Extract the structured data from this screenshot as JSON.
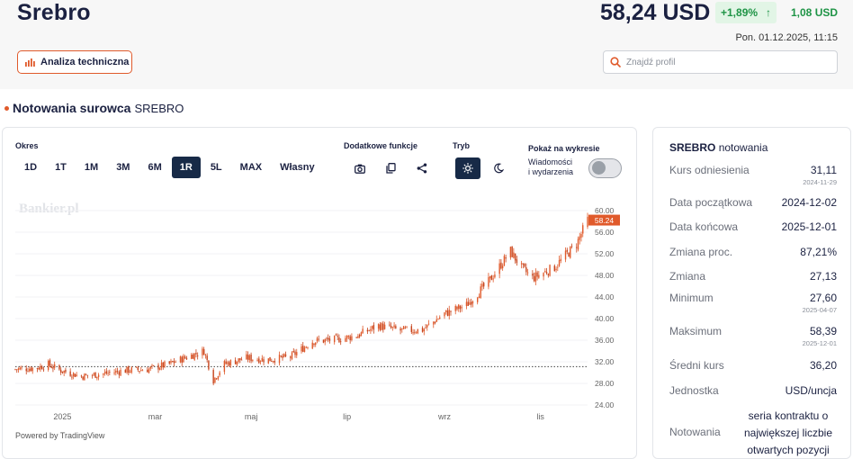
{
  "header": {
    "title": "Srebro",
    "price": "58,24 USD",
    "change_pct": "+1,89%",
    "change_arrow": "↑",
    "change_abs": "1,08 USD",
    "datetime": "Pon. 01.12.2025, 11:15",
    "ta_button": "Analiza techniczna",
    "search_placeholder": "Znajdź profil",
    "positive_color": "#1f9446",
    "accent_color": "#e05a2b"
  },
  "section": {
    "title": "Notowania surowca",
    "subtitle": "SREBRO"
  },
  "controls": {
    "period_label": "Okres",
    "periods": [
      "1D",
      "1T",
      "1M",
      "3M",
      "6M",
      "1R",
      "5L",
      "MAX",
      "Własny"
    ],
    "active_period": "1R",
    "functions_label": "Dodatkowe funkcje",
    "function_icons": [
      "camera-icon",
      "copy-icon",
      "share-icon"
    ],
    "mode_label": "Tryb",
    "mode_icons": [
      "sun-icon",
      "moon-icon"
    ],
    "active_mode": "light",
    "show_label": "Pokaż na wykresie",
    "news_label_1": "Wiadomości",
    "news_label_2": "i wydarzenia",
    "news_toggle_on": false,
    "watermark": "Bankier.pl",
    "powered_by": "Powered by TradingView"
  },
  "chart_data": {
    "type": "candlestick",
    "y_ticks": [
      "60.00",
      "56.00",
      "52.00",
      "48.00",
      "44.00",
      "40.00",
      "36.00",
      "32.00",
      "28.00",
      "24.00"
    ],
    "ylim": [
      24,
      60
    ],
    "x_ticks": [
      "2025",
      "mar",
      "maj",
      "lip",
      "wrz",
      "lis"
    ],
    "x_tick_dates": [
      "2025-01-01",
      "2025-03-01",
      "2025-05-01",
      "2025-07-01",
      "2025-09-01",
      "2025-11-01"
    ],
    "x_range": [
      "2024-12-02",
      "2025-12-01"
    ],
    "last_price_label": "58.24",
    "last_price": 58.24,
    "reference_line": 31.11,
    "up_color": "#e05a2b",
    "closes": [
      {
        "date": "2024-12-02",
        "value": 30.6
      },
      {
        "date": "2024-12-16",
        "value": 30.9
      },
      {
        "date": "2024-12-23",
        "value": 31.5
      },
      {
        "date": "2024-12-30",
        "value": 30.5
      },
      {
        "date": "2025-01-13",
        "value": 29.3
      },
      {
        "date": "2025-01-27",
        "value": 29.8
      },
      {
        "date": "2025-02-10",
        "value": 30.4
      },
      {
        "date": "2025-02-24",
        "value": 30.6
      },
      {
        "date": "2025-03-10",
        "value": 31.6
      },
      {
        "date": "2025-03-24",
        "value": 33.2
      },
      {
        "date": "2025-04-01",
        "value": 34.0
      },
      {
        "date": "2025-04-07",
        "value": 28.6
      },
      {
        "date": "2025-04-14",
        "value": 31.6
      },
      {
        "date": "2025-04-28",
        "value": 32.7
      },
      {
        "date": "2025-05-12",
        "value": 32.4
      },
      {
        "date": "2025-05-26",
        "value": 32.9
      },
      {
        "date": "2025-06-09",
        "value": 35.8
      },
      {
        "date": "2025-06-23",
        "value": 36.1
      },
      {
        "date": "2025-07-07",
        "value": 36.8
      },
      {
        "date": "2025-07-21",
        "value": 38.7
      },
      {
        "date": "2025-08-04",
        "value": 37.8
      },
      {
        "date": "2025-08-18",
        "value": 37.9
      },
      {
        "date": "2025-09-01",
        "value": 40.9
      },
      {
        "date": "2025-09-15",
        "value": 42.5
      },
      {
        "date": "2025-09-29",
        "value": 46.8
      },
      {
        "date": "2025-10-13",
        "value": 52.5
      },
      {
        "date": "2025-10-20",
        "value": 49.4
      },
      {
        "date": "2025-10-27",
        "value": 47.5
      },
      {
        "date": "2025-11-10",
        "value": 49.5
      },
      {
        "date": "2025-11-17",
        "value": 51.7
      },
      {
        "date": "2025-11-24",
        "value": 53.8
      },
      {
        "date": "2025-12-01",
        "value": 58.24
      }
    ]
  },
  "stats": {
    "title": "SREBRO",
    "title_suffix": "notowania",
    "rows": [
      {
        "key": "Kurs odniesienia",
        "value": "31,11",
        "date": "2024-11-29"
      },
      {
        "key": "Data początkowa",
        "value": "2024-12-02",
        "date": ""
      },
      {
        "key": "Data końcowa",
        "value": "2025-12-01",
        "date": ""
      },
      {
        "key": "Zmiana proc.",
        "value": "87,21%",
        "date": ""
      },
      {
        "key": "Zmiana",
        "value": "27,13",
        "date": ""
      },
      {
        "key": "Minimum",
        "value": "27,60",
        "date": "2025-04-07"
      },
      {
        "key": "Maksimum",
        "value": "58,39",
        "date": "2025-12-01"
      },
      {
        "key": "Średni kurs",
        "value": "36,20",
        "date": ""
      },
      {
        "key": "Jednostka",
        "value": "USD/uncja",
        "date": ""
      }
    ],
    "notowania_key": "Notowania",
    "notowania_lines": [
      "seria kontraktu o",
      "największej liczbie",
      "otwartych pozycji"
    ]
  }
}
